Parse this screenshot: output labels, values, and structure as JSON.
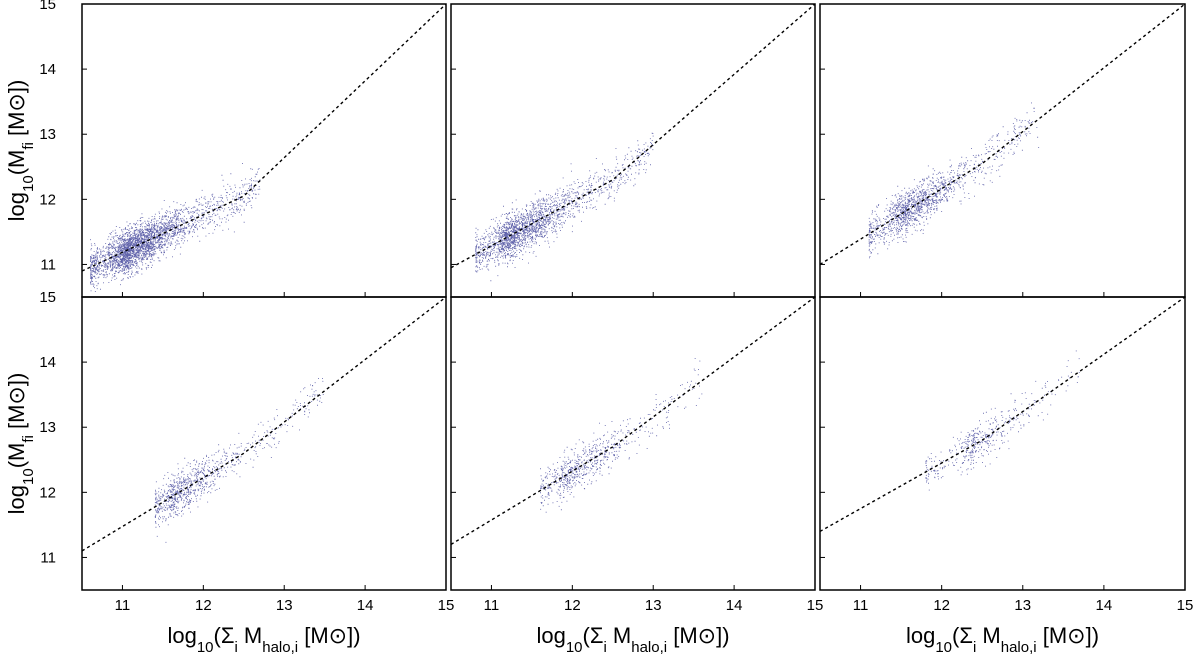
{
  "chart_data": {
    "type": "scatter",
    "layout": "2 rows x 3 columns, shared axes",
    "xlabel": {
      "pre": "log",
      "sub1": "10",
      "mid": "(Σ",
      "sub2": "i",
      "mid2": " M",
      "sub3": "halo,i",
      "post": " [M",
      "sym": "⊙",
      "end": "])"
    },
    "ylabel": {
      "pre": "log",
      "sub1": "10",
      "mid": "(M",
      "sub2": "fi",
      "post": " [M",
      "sym": "⊙",
      "end": "])"
    },
    "xlim": [
      10.5,
      15
    ],
    "ylim": [
      10.5,
      15
    ],
    "x_ticks": [
      "11",
      "12",
      "13",
      "14",
      "15"
    ],
    "y_ticks": [
      "11",
      "12",
      "13",
      "14",
      "15"
    ],
    "grid": false,
    "colors": {
      "points": "#2b2f8f",
      "fit_line": "#000000",
      "frame": "#000000"
    },
    "panels": [
      {
        "row": 0,
        "col": 0,
        "fit_line": [
          [
            10.5,
            10.9
          ],
          [
            12.5,
            12.05
          ],
          [
            15,
            15.0
          ]
        ],
        "cloud": {
          "x_range": [
            10.6,
            12.7
          ],
          "dense_center": [
            11.1,
            11.2
          ],
          "count": 3000
        }
      },
      {
        "row": 0,
        "col": 1,
        "fit_line": [
          [
            10.5,
            10.95
          ],
          [
            12.5,
            12.3
          ],
          [
            15,
            15.0
          ]
        ],
        "cloud": {
          "x_range": [
            10.8,
            13.0
          ],
          "dense_center": [
            11.3,
            11.5
          ],
          "count": 2100
        }
      },
      {
        "row": 0,
        "col": 2,
        "fit_line": [
          [
            10.5,
            11.0
          ],
          [
            12.5,
            12.55
          ],
          [
            15,
            15.0
          ]
        ],
        "cloud": {
          "x_range": [
            11.1,
            13.2
          ],
          "dense_center": [
            11.6,
            11.8
          ],
          "count": 1400
        }
      },
      {
        "row": 1,
        "col": 0,
        "fit_line": [
          [
            10.5,
            11.1
          ],
          [
            12.5,
            12.6
          ],
          [
            15,
            15.0
          ]
        ],
        "cloud": {
          "x_range": [
            11.4,
            13.5
          ],
          "dense_center": [
            11.7,
            12.1
          ],
          "count": 900
        }
      },
      {
        "row": 1,
        "col": 1,
        "fit_line": [
          [
            10.5,
            11.2
          ],
          [
            12.5,
            12.7
          ],
          [
            15,
            15.0
          ]
        ],
        "cloud": {
          "x_range": [
            11.6,
            13.6
          ],
          "dense_center": [
            12.0,
            12.4
          ],
          "count": 700
        }
      },
      {
        "row": 1,
        "col": 2,
        "fit_line": [
          [
            10.5,
            11.4
          ],
          [
            12.5,
            12.8
          ],
          [
            15,
            15.0
          ]
        ],
        "cloud": {
          "x_range": [
            11.8,
            13.7
          ],
          "dense_center": [
            12.4,
            12.7
          ],
          "count": 450
        }
      }
    ]
  }
}
